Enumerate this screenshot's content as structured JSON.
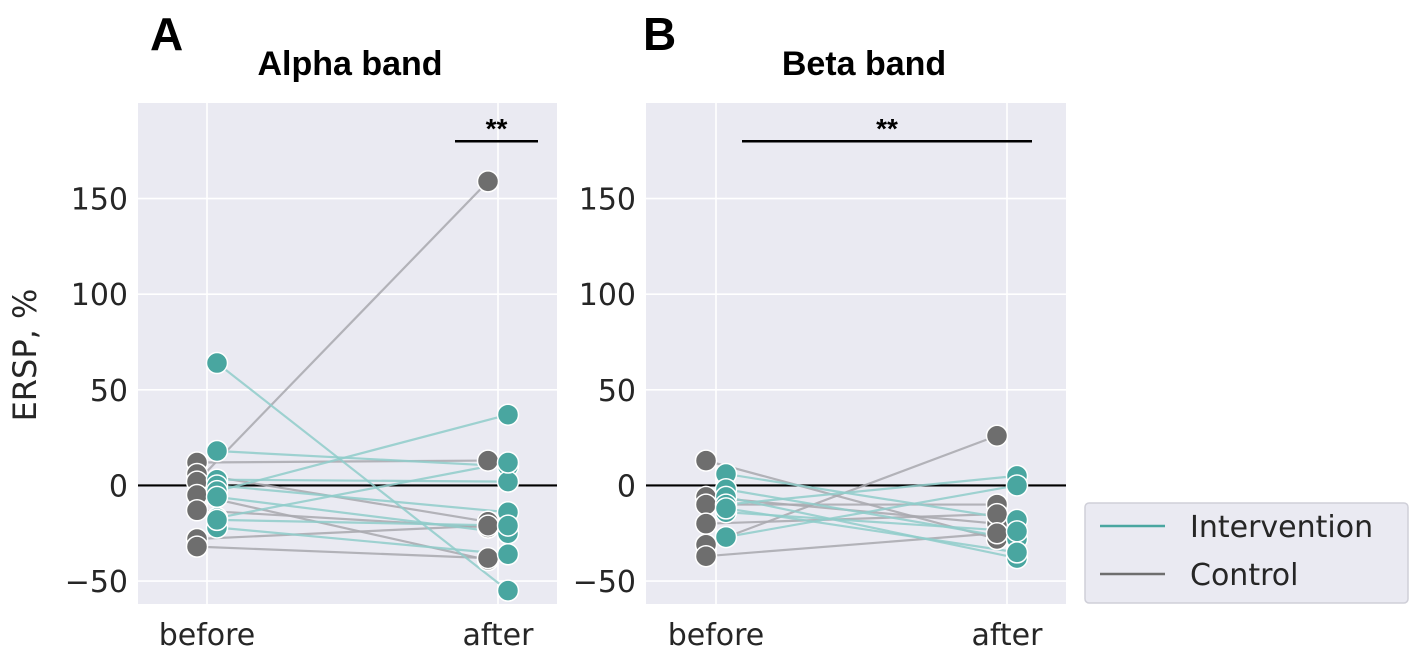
{
  "colors": {
    "intervention": "#49a6a0",
    "control": "#6e6e6e",
    "plot_bg": "#eaeaf2",
    "grid": "#ffffff",
    "text": "#262626"
  },
  "legend": {
    "items": [
      {
        "label": "Intervention",
        "color": "#49a6a0"
      },
      {
        "label": "Control",
        "color": "#6e6e6e"
      }
    ]
  },
  "chart_data": [
    {
      "type": "scatter",
      "panel_letter": "A",
      "title": "Alpha band",
      "xlabel": "",
      "ylabel": "ERSP, %",
      "categories": [
        "before",
        "after"
      ],
      "ylim": [
        -62,
        200
      ],
      "yticks": [
        -50,
        0,
        50,
        100,
        150
      ],
      "ytick_labels": [
        "−50",
        "0",
        "50",
        "100",
        "150"
      ],
      "significance": {
        "label": "**",
        "from": "after",
        "to": "after"
      },
      "series": [
        {
          "name": "Control",
          "pairs": [
            [
              12,
              13
            ],
            [
              6,
              -19
            ],
            [
              2,
              159
            ],
            [
              -5,
              -39
            ],
            [
              -13,
              -22
            ],
            [
              -28,
              -21
            ],
            [
              -32,
              -38
            ]
          ]
        },
        {
          "name": "Intervention",
          "pairs": [
            [
              64,
              -55
            ],
            [
              18,
              10
            ],
            [
              3,
              2
            ],
            [
              0,
              -14
            ],
            [
              -3,
              37
            ],
            [
              -6,
              -25
            ],
            [
              -17,
              12
            ],
            [
              -22,
              -36
            ],
            [
              -18,
              -21
            ]
          ]
        }
      ]
    },
    {
      "type": "scatter",
      "panel_letter": "B",
      "title": "Beta band",
      "xlabel": "",
      "ylabel": "",
      "categories": [
        "before",
        "after"
      ],
      "ylim": [
        -62,
        200
      ],
      "yticks": [
        -50,
        0,
        50,
        100,
        150
      ],
      "ytick_labels": [
        "−50",
        "0",
        "50",
        "100",
        "150"
      ],
      "significance": {
        "label": "**",
        "from": "before",
        "to": "after"
      },
      "series": [
        {
          "name": "Control",
          "pairs": [
            [
              13,
              -28
            ],
            [
              -6,
              -20
            ],
            [
              -10,
              -10
            ],
            [
              -20,
              -15
            ],
            [
              -31,
              26
            ],
            [
              -37,
              -25
            ]
          ]
        },
        {
          "name": "Intervention",
          "pairs": [
            [
              6,
              -18
            ],
            [
              -2,
              -28
            ],
            [
              -6,
              -38
            ],
            [
              -10,
              5
            ],
            [
              -14,
              -24
            ],
            [
              -27,
              0
            ],
            [
              -12,
              -35
            ]
          ]
        }
      ]
    }
  ]
}
